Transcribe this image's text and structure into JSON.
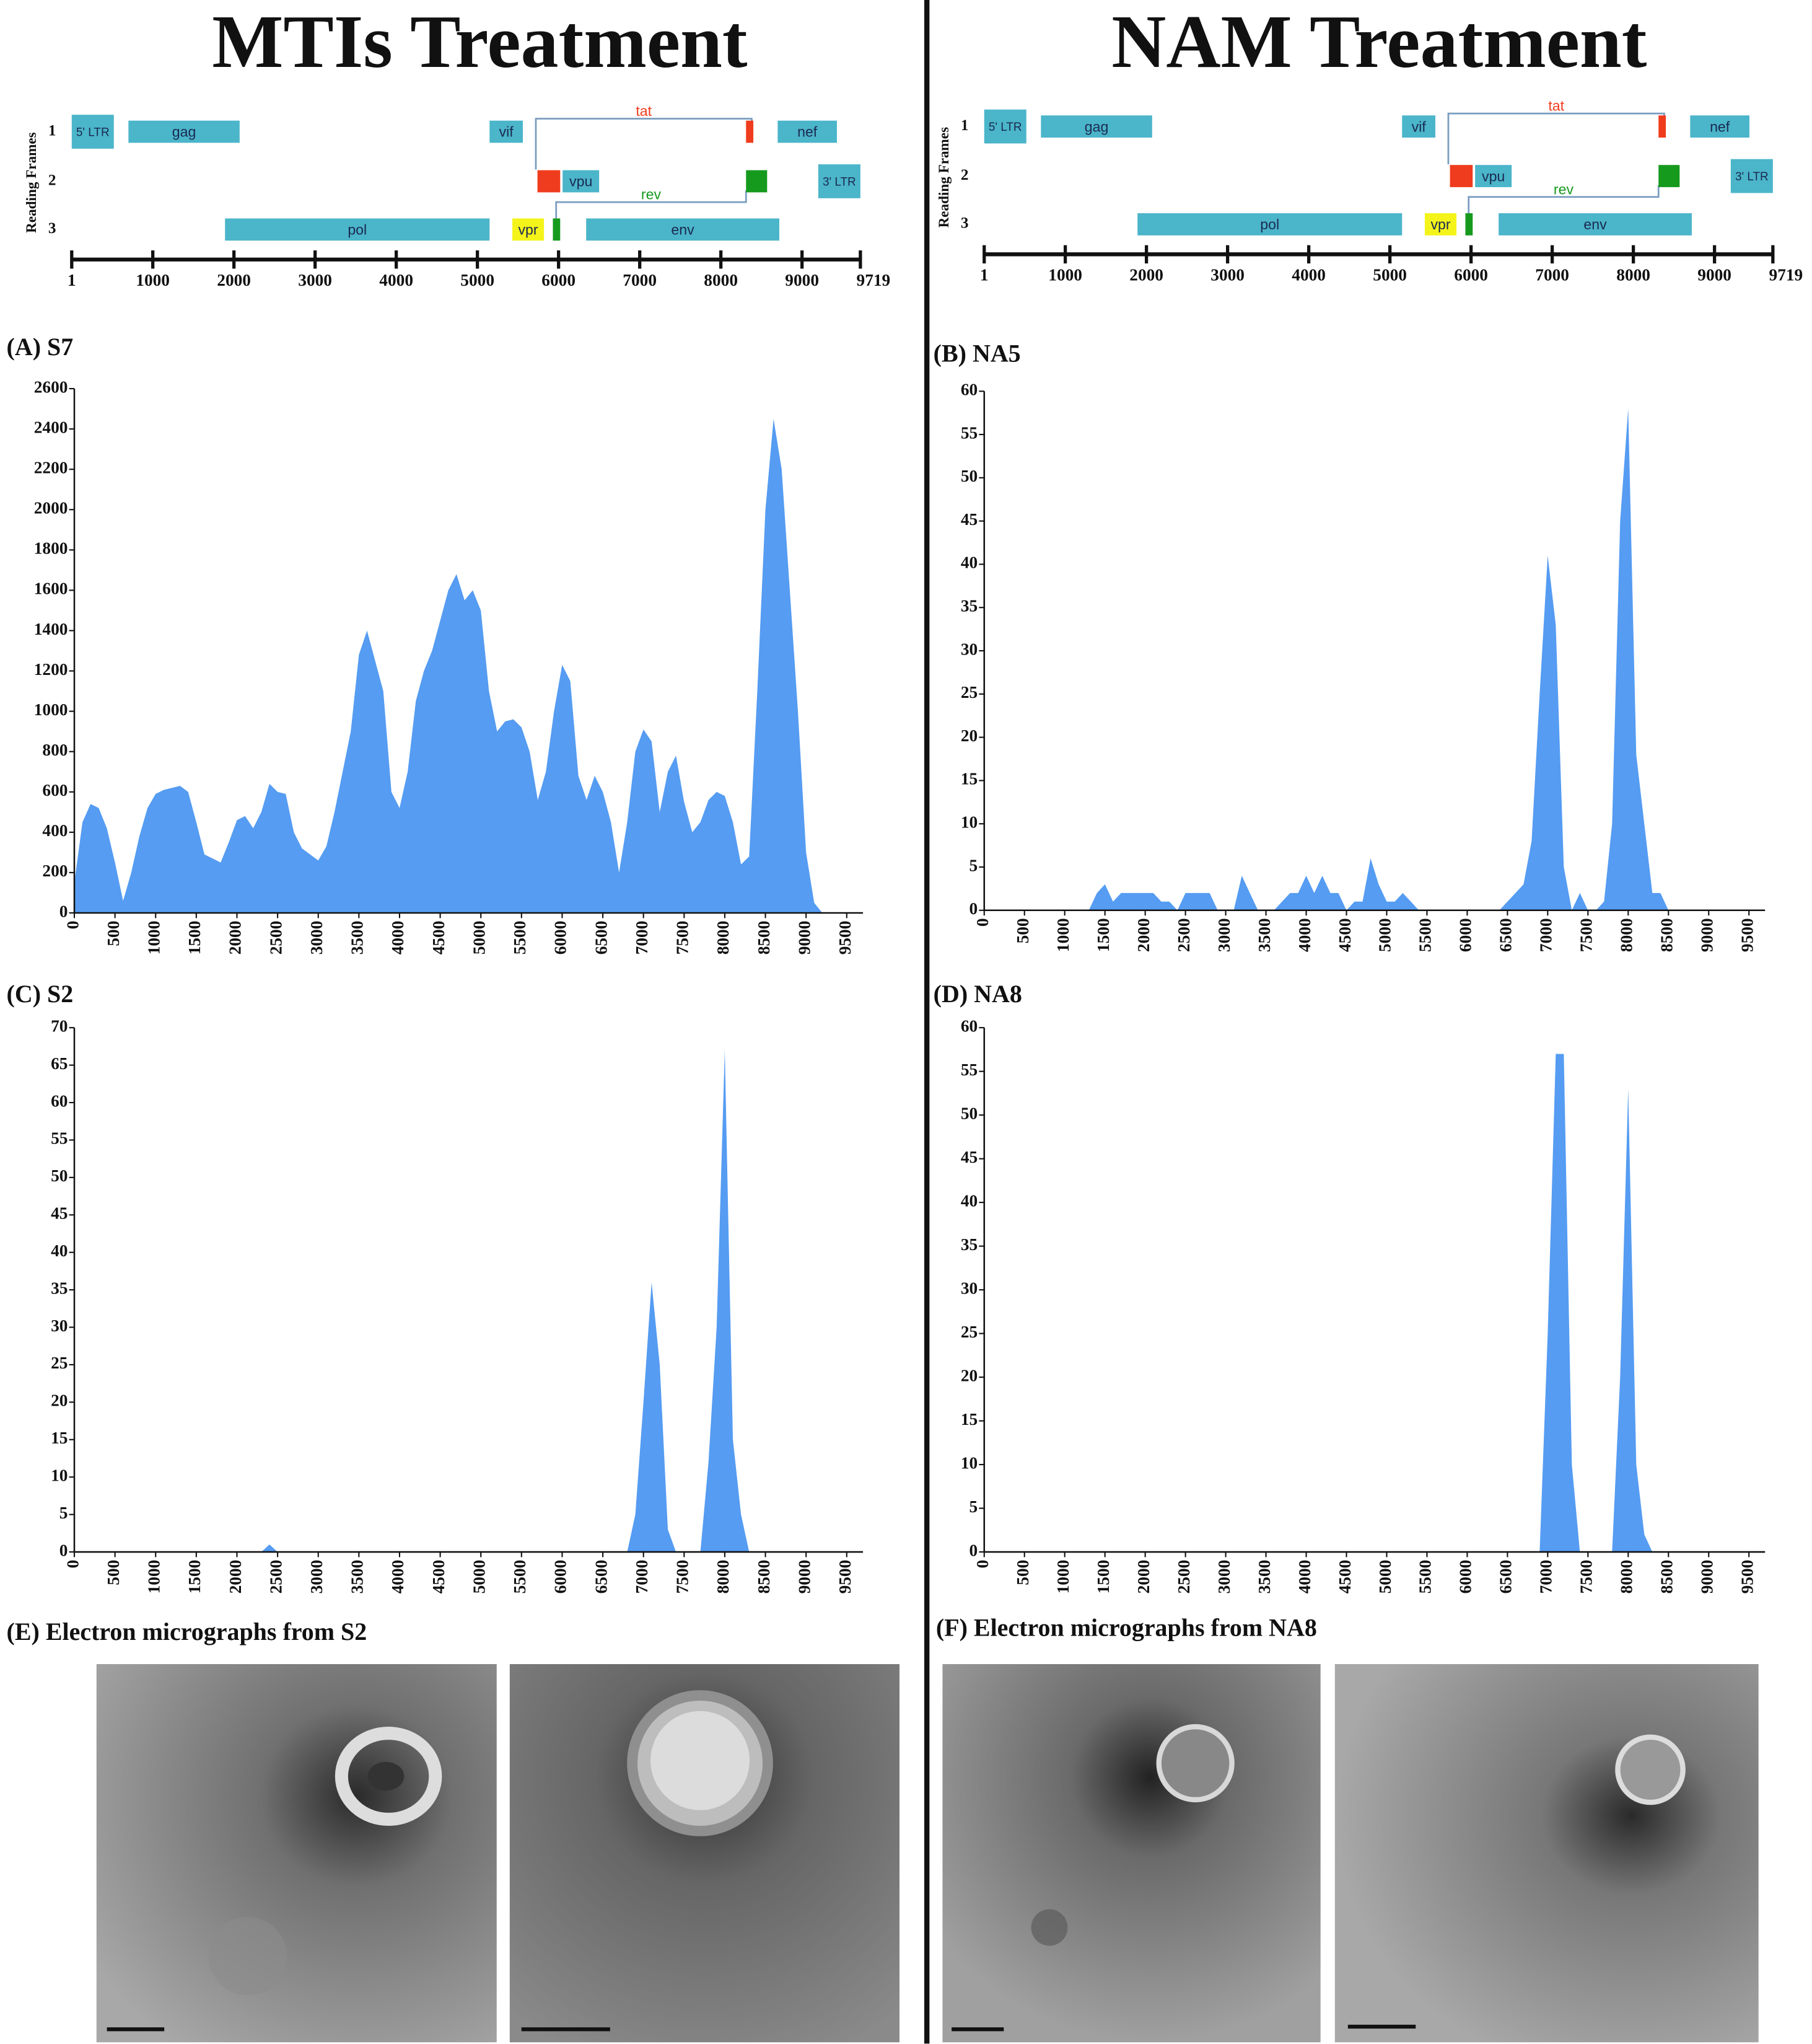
{
  "headers": [
    "MTIs Treatment",
    "NAM Treatment"
  ],
  "genome_map": {
    "axis_label": "Reading Frames",
    "frames": [
      1,
      2,
      3
    ],
    "ticks": [
      1,
      1000,
      2000,
      3000,
      4000,
      5000,
      6000,
      7000,
      8000,
      9000,
      9719
    ],
    "genes": [
      {
        "label": "5' LTR",
        "start": 1,
        "end": 520,
        "frame": 1,
        "color": "#4bb5ca"
      },
      {
        "label": "gag",
        "start": 700,
        "end": 2070,
        "frame": 1,
        "color": "#4bb5ca"
      },
      {
        "label": "vif",
        "start": 5150,
        "end": 5560,
        "frame": 1,
        "color": "#4bb5ca"
      },
      {
        "label": "tat",
        "start": 5720,
        "end": 8380,
        "frame": 1,
        "color": "#f03c1e",
        "shape": "bracket"
      },
      {
        "start": 8310,
        "end": 8400,
        "frame": 1,
        "color": "#f03c1e"
      },
      {
        "label": "nef",
        "start": 8700,
        "end": 9430,
        "frame": 1,
        "color": "#4bb5ca"
      },
      {
        "start": 5740,
        "end": 6020,
        "frame": 2,
        "color": "#f03c1e"
      },
      {
        "label": "vpu",
        "start": 6050,
        "end": 6500,
        "frame": 2,
        "color": "#4bb5ca"
      },
      {
        "label": "rev",
        "start": 5970,
        "end": 8310,
        "frame": 2,
        "color": "#169a1e",
        "shape": "bracket"
      },
      {
        "start": 8310,
        "end": 8570,
        "frame": 2,
        "color": "#169a1e"
      },
      {
        "label": "3' LTR",
        "start": 9200,
        "end": 9719,
        "frame": 2,
        "color": "#4bb5ca"
      },
      {
        "label": "pol",
        "start": 1890,
        "end": 5150,
        "frame": 3,
        "color": "#4bb5ca"
      },
      {
        "label": "vpr",
        "start": 5430,
        "end": 5820,
        "frame": 3,
        "color": "#f4f41a"
      },
      {
        "start": 5930,
        "end": 6020,
        "frame": 3,
        "color": "#169a1e"
      },
      {
        "label": "env",
        "start": 6340,
        "end": 8720,
        "frame": 3,
        "color": "#4bb5ca"
      }
    ]
  },
  "chart_data": [
    {
      "type": "area",
      "title": "(A) S7",
      "color": "#559cf2",
      "x": [
        0,
        100,
        200,
        300,
        400,
        500,
        600,
        700,
        800,
        900,
        1000,
        1100,
        1200,
        1300,
        1400,
        1500,
        1600,
        1700,
        1800,
        1900,
        2000,
        2100,
        2200,
        2300,
        2400,
        2500,
        2600,
        2700,
        2800,
        2900,
        3000,
        3100,
        3200,
        3300,
        3400,
        3500,
        3600,
        3700,
        3800,
        3900,
        4000,
        4100,
        4200,
        4300,
        4400,
        4500,
        4600,
        4700,
        4800,
        4900,
        5000,
        5100,
        5200,
        5300,
        5400,
        5500,
        5600,
        5700,
        5800,
        5900,
        6000,
        6100,
        6200,
        6300,
        6400,
        6500,
        6600,
        6700,
        6800,
        6900,
        7000,
        7100,
        7200,
        7300,
        7400,
        7500,
        7600,
        7700,
        7800,
        7900,
        8000,
        8100,
        8200,
        8300,
        8400,
        8500,
        8600,
        8700,
        8800,
        8900,
        9000,
        9100,
        9200
      ],
      "values": [
        150,
        450,
        540,
        520,
        420,
        250,
        60,
        200,
        380,
        520,
        590,
        610,
        620,
        630,
        600,
        450,
        290,
        270,
        250,
        350,
        460,
        480,
        420,
        500,
        640,
        600,
        590,
        400,
        320,
        290,
        260,
        330,
        500,
        700,
        900,
        1280,
        1400,
        1250,
        1100,
        600,
        520,
        700,
        1050,
        1200,
        1300,
        1450,
        1600,
        1680,
        1550,
        1600,
        1500,
        1100,
        900,
        950,
        960,
        920,
        800,
        560,
        700,
        1000,
        1230,
        1150,
        680,
        560,
        680,
        600,
        450,
        200,
        450,
        800,
        910,
        850,
        500,
        700,
        780,
        550,
        400,
        450,
        560,
        600,
        580,
        450,
        240,
        280,
        1100,
        2000,
        2450,
        2200,
        1600,
        1000,
        300,
        50,
        0
      ],
      "xlim": [
        0,
        9700
      ],
      "ylim": [
        0,
        2600
      ],
      "xticks": [
        0,
        500,
        1000,
        1500,
        2000,
        2500,
        3000,
        3500,
        4000,
        4500,
        5000,
        5500,
        6000,
        6500,
        7000,
        7500,
        8000,
        8500,
        9000,
        9500
      ],
      "yticks": [
        0,
        200,
        400,
        600,
        800,
        1000,
        1200,
        1400,
        1600,
        1800,
        2000,
        2200,
        2400,
        2600
      ]
    },
    {
      "type": "area",
      "title": "(B) NA5",
      "color": "#559cf2",
      "x": [
        0,
        1300,
        1400,
        1500,
        1600,
        1700,
        1800,
        1900,
        2000,
        2100,
        2200,
        2300,
        2400,
        2500,
        2600,
        2700,
        2800,
        2900,
        3000,
        3100,
        3200,
        3300,
        3400,
        3500,
        3600,
        3700,
        3800,
        3900,
        4000,
        4100,
        4200,
        4300,
        4400,
        4500,
        4600,
        4700,
        4800,
        4900,
        5000,
        5100,
        5200,
        5300,
        5400,
        6400,
        6500,
        6600,
        6700,
        6800,
        6900,
        7000,
        7100,
        7200,
        7300,
        7400,
        7500,
        7600,
        7700,
        7800,
        7900,
        8000,
        8100,
        8200,
        8300,
        8400,
        8500,
        9500
      ],
      "values": [
        0,
        0,
        2,
        3,
        1,
        2,
        2,
        2,
        2,
        2,
        1,
        1,
        0,
        2,
        2,
        2,
        2,
        0,
        0,
        0,
        4,
        2,
        0,
        0,
        0,
        1,
        2,
        2,
        4,
        2,
        4,
        2,
        2,
        0,
        1,
        1,
        6,
        3,
        1,
        1,
        2,
        1,
        0,
        0,
        1,
        2,
        3,
        8,
        25,
        41,
        33,
        5,
        0,
        2,
        0,
        0,
        1,
        10,
        45,
        58,
        18,
        10,
        2,
        2,
        0,
        0
      ],
      "xlim": [
        0,
        9700
      ],
      "ylim": [
        0,
        60
      ],
      "xticks": [
        0,
        500,
        1000,
        1500,
        2000,
        2500,
        3000,
        3500,
        4000,
        4500,
        5000,
        5500,
        6000,
        6500,
        7000,
        7500,
        8000,
        8500,
        9000,
        9500
      ],
      "yticks": [
        0,
        5,
        10,
        15,
        20,
        25,
        30,
        35,
        40,
        45,
        50,
        55,
        60
      ]
    },
    {
      "type": "area",
      "title": "(C) S2",
      "color": "#559cf2",
      "x": [
        0,
        2300,
        2400,
        2500,
        6800,
        6900,
        7000,
        7100,
        7200,
        7300,
        7400,
        7700,
        7800,
        7900,
        8000,
        8100,
        8200,
        8300,
        9500
      ],
      "values": [
        0,
        0,
        1,
        0,
        0,
        5,
        20,
        36,
        25,
        3,
        0,
        0,
        12,
        30,
        67,
        15,
        5,
        0,
        0
      ],
      "xlim": [
        0,
        9700
      ],
      "ylim": [
        0,
        70
      ],
      "xticks": [
        0,
        500,
        1000,
        1500,
        2000,
        2500,
        3000,
        3500,
        4000,
        4500,
        5000,
        5500,
        6000,
        6500,
        7000,
        7500,
        8000,
        8500,
        9000,
        9500
      ],
      "yticks": [
        0,
        5,
        10,
        15,
        20,
        25,
        30,
        35,
        40,
        45,
        50,
        55,
        60,
        65,
        70
      ]
    },
    {
      "type": "area",
      "title": "(D) NA8",
      "color": "#559cf2",
      "x": [
        0,
        6900,
        7000,
        7100,
        7200,
        7300,
        7400,
        7800,
        7900,
        8000,
        8100,
        8200,
        8300,
        9500
      ],
      "values": [
        0,
        0,
        25,
        57,
        57,
        10,
        0,
        0,
        20,
        53,
        10,
        2,
        0,
        0
      ],
      "xlim": [
        0,
        9700
      ],
      "ylim": [
        0,
        60
      ],
      "xticks": [
        0,
        500,
        1000,
        1500,
        2000,
        2500,
        3000,
        3500,
        4000,
        4500,
        5000,
        5500,
        6000,
        6500,
        7000,
        7500,
        8000,
        8500,
        9000,
        9500
      ],
      "yticks": [
        0,
        5,
        10,
        15,
        20,
        25,
        30,
        35,
        40,
        45,
        50,
        55,
        60
      ]
    }
  ],
  "micrographs": [
    "(E) Electron micrographs from S2",
    "(F) Electron micrographs from NA8"
  ]
}
